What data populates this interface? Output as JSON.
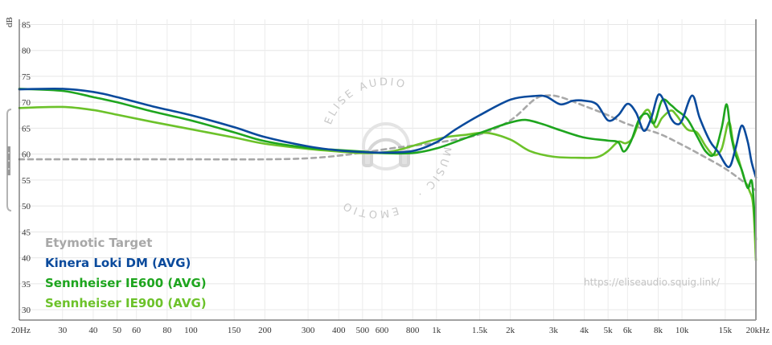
{
  "chart_data": {
    "type": "line",
    "title": "",
    "xlabel": "",
    "ylabel": "",
    "y_unit": "dB",
    "x_scale": "log",
    "xlim_hz": [
      20,
      20000
    ],
    "ylim_db": [
      28,
      86
    ],
    "grid": true,
    "legend_placement": "bottom-left",
    "y_ticks": [
      30,
      35,
      40,
      45,
      50,
      55,
      60,
      65,
      70,
      75,
      80,
      85
    ],
    "x_ticks": [
      {
        "hz": 20,
        "label": "20Hz"
      },
      {
        "hz": 30,
        "label": "30"
      },
      {
        "hz": 40,
        "label": "40"
      },
      {
        "hz": 50,
        "label": "50"
      },
      {
        "hz": 60,
        "label": "60"
      },
      {
        "hz": 80,
        "label": "80"
      },
      {
        "hz": 100,
        "label": "100"
      },
      {
        "hz": 150,
        "label": "150"
      },
      {
        "hz": 200,
        "label": "200"
      },
      {
        "hz": 300,
        "label": "300"
      },
      {
        "hz": 400,
        "label": "400"
      },
      {
        "hz": 500,
        "label": "500"
      },
      {
        "hz": 600,
        "label": "600"
      },
      {
        "hz": 800,
        "label": "800"
      },
      {
        "hz": 1000,
        "label": "1k"
      },
      {
        "hz": 1500,
        "label": "1.5k"
      },
      {
        "hz": 2000,
        "label": "2k"
      },
      {
        "hz": 3000,
        "label": "3k"
      },
      {
        "hz": 4000,
        "label": "4k"
      },
      {
        "hz": 5000,
        "label": "5k"
      },
      {
        "hz": 6000,
        "label": "6k"
      },
      {
        "hz": 8000,
        "label": "8k"
      },
      {
        "hz": 10000,
        "label": "10k"
      },
      {
        "hz": 15000,
        "label": "15k"
      },
      {
        "hz": 20000,
        "label": "20kHz"
      }
    ],
    "series": [
      {
        "name": "Etymotic Target",
        "color": "#a8a8a8",
        "dashed": true,
        "points": [
          [
            20,
            59
          ],
          [
            50,
            59
          ],
          [
            100,
            59
          ],
          [
            200,
            59
          ],
          [
            300,
            59.2
          ],
          [
            400,
            59.7
          ],
          [
            500,
            60.3
          ],
          [
            700,
            61.3
          ],
          [
            1000,
            62.2
          ],
          [
            1500,
            63.8
          ],
          [
            2000,
            66.5
          ],
          [
            2500,
            70.5
          ],
          [
            2800,
            71.3
          ],
          [
            3200,
            71
          ],
          [
            4000,
            69.3
          ],
          [
            5000,
            67.5
          ],
          [
            6000,
            65.8
          ],
          [
            8000,
            64
          ],
          [
            10000,
            61.8
          ],
          [
            12000,
            59.8
          ],
          [
            15000,
            57.2
          ],
          [
            18000,
            54.5
          ],
          [
            20000,
            53
          ]
        ]
      },
      {
        "name": "Kinera Loki DM (AVG)",
        "color": "#0a4a9c",
        "dashed": false,
        "points": [
          [
            20,
            72.5
          ],
          [
            30,
            72.6
          ],
          [
            40,
            72
          ],
          [
            50,
            71
          ],
          [
            70,
            69.2
          ],
          [
            100,
            67.5
          ],
          [
            150,
            65.2
          ],
          [
            200,
            63.3
          ],
          [
            300,
            61.5
          ],
          [
            400,
            60.7
          ],
          [
            500,
            60.4
          ],
          [
            600,
            60.3
          ],
          [
            800,
            60.6
          ],
          [
            1000,
            62.3
          ],
          [
            1200,
            64.8
          ],
          [
            1500,
            67.5
          ],
          [
            2000,
            70.5
          ],
          [
            2500,
            71.2
          ],
          [
            2800,
            71.1
          ],
          [
            3200,
            69.6
          ],
          [
            3600,
            70.3
          ],
          [
            4000,
            70.3
          ],
          [
            4500,
            69.6
          ],
          [
            5000,
            66.5
          ],
          [
            5500,
            67.5
          ],
          [
            6000,
            69.7
          ],
          [
            6500,
            68
          ],
          [
            7000,
            64.5
          ],
          [
            7500,
            67
          ],
          [
            8000,
            71.4
          ],
          [
            8500,
            70
          ],
          [
            9000,
            67
          ],
          [
            9500,
            65.8
          ],
          [
            10000,
            66.5
          ],
          [
            11000,
            71.3
          ],
          [
            11800,
            67
          ],
          [
            13000,
            62.5
          ],
          [
            14000,
            60.5
          ],
          [
            15500,
            57.5
          ],
          [
            16500,
            61
          ],
          [
            17500,
            65.5
          ],
          [
            18500,
            62.5
          ],
          [
            19200,
            58.5
          ],
          [
            20000,
            55.5
          ]
        ]
      },
      {
        "name": "Sennheiser IE600 (AVG)",
        "color": "#1ea51e",
        "dashed": false,
        "points": [
          [
            20,
            72.6
          ],
          [
            30,
            72.2
          ],
          [
            40,
            71
          ],
          [
            50,
            70
          ],
          [
            70,
            68.2
          ],
          [
            100,
            66.5
          ],
          [
            150,
            64.2
          ],
          [
            200,
            62.5
          ],
          [
            300,
            61.2
          ],
          [
            400,
            60.8
          ],
          [
            500,
            60.5
          ],
          [
            600,
            60.2
          ],
          [
            800,
            60.2
          ],
          [
            1000,
            61.1
          ],
          [
            1300,
            63
          ],
          [
            1700,
            65
          ],
          [
            2000,
            66.1
          ],
          [
            2300,
            66.6
          ],
          [
            2700,
            65.8
          ],
          [
            3200,
            64.6
          ],
          [
            4000,
            63.2
          ],
          [
            5000,
            62.6
          ],
          [
            5500,
            62.3
          ],
          [
            5800,
            60.5
          ],
          [
            6200,
            62.5
          ],
          [
            6700,
            66.8
          ],
          [
            7200,
            67.8
          ],
          [
            7700,
            66
          ],
          [
            8300,
            70.4
          ],
          [
            9000,
            69.5
          ],
          [
            9500,
            68.5
          ],
          [
            10500,
            66.8
          ],
          [
            11500,
            63.5
          ],
          [
            12500,
            60.5
          ],
          [
            13500,
            60
          ],
          [
            14500,
            65
          ],
          [
            15200,
            69.6
          ],
          [
            15800,
            64
          ],
          [
            16500,
            60
          ],
          [
            17500,
            57
          ],
          [
            18500,
            53.5
          ],
          [
            19300,
            54.5
          ],
          [
            20000,
            43.5
          ]
        ]
      },
      {
        "name": "Sennheiser IE900 (AVG)",
        "color": "#6cc22a",
        "dashed": false,
        "points": [
          [
            20,
            68.9
          ],
          [
            30,
            69.1
          ],
          [
            40,
            68.5
          ],
          [
            50,
            67.6
          ],
          [
            70,
            66.2
          ],
          [
            100,
            64.8
          ],
          [
            150,
            63.2
          ],
          [
            200,
            62
          ],
          [
            300,
            61
          ],
          [
            400,
            60.5
          ],
          [
            500,
            60.2
          ],
          [
            600,
            60.3
          ],
          [
            700,
            60.8
          ],
          [
            900,
            62.3
          ],
          [
            1100,
            63.3
          ],
          [
            1300,
            63.7
          ],
          [
            1600,
            64.1
          ],
          [
            2000,
            62.8
          ],
          [
            2400,
            60.6
          ],
          [
            3000,
            59.5
          ],
          [
            3800,
            59.3
          ],
          [
            4500,
            59.4
          ],
          [
            5000,
            60.6
          ],
          [
            5500,
            62.4
          ],
          [
            5900,
            62.1
          ],
          [
            6300,
            63.2
          ],
          [
            6800,
            67
          ],
          [
            7300,
            68.5
          ],
          [
            7800,
            65.2
          ],
          [
            8300,
            67
          ],
          [
            9000,
            68.4
          ],
          [
            9500,
            67.5
          ],
          [
            10500,
            64.8
          ],
          [
            11500,
            64.2
          ],
          [
            12500,
            61.5
          ],
          [
            13500,
            59.8
          ],
          [
            14500,
            61
          ],
          [
            15500,
            66.2
          ],
          [
            16200,
            62
          ],
          [
            17000,
            59
          ],
          [
            18000,
            55
          ],
          [
            18800,
            53
          ],
          [
            19500,
            50
          ],
          [
            20000,
            39.5
          ]
        ]
      }
    ]
  },
  "watermark": {
    "text_top": "ELISE AUDIO",
    "text_right": "MUSIC ·",
    "text_bottom": "EMOTIO",
    "url": "https://eliseaudio.squig.link/"
  },
  "icons": {
    "headphones": "headphones-logo-icon",
    "handle": "drag-handle-icon"
  }
}
